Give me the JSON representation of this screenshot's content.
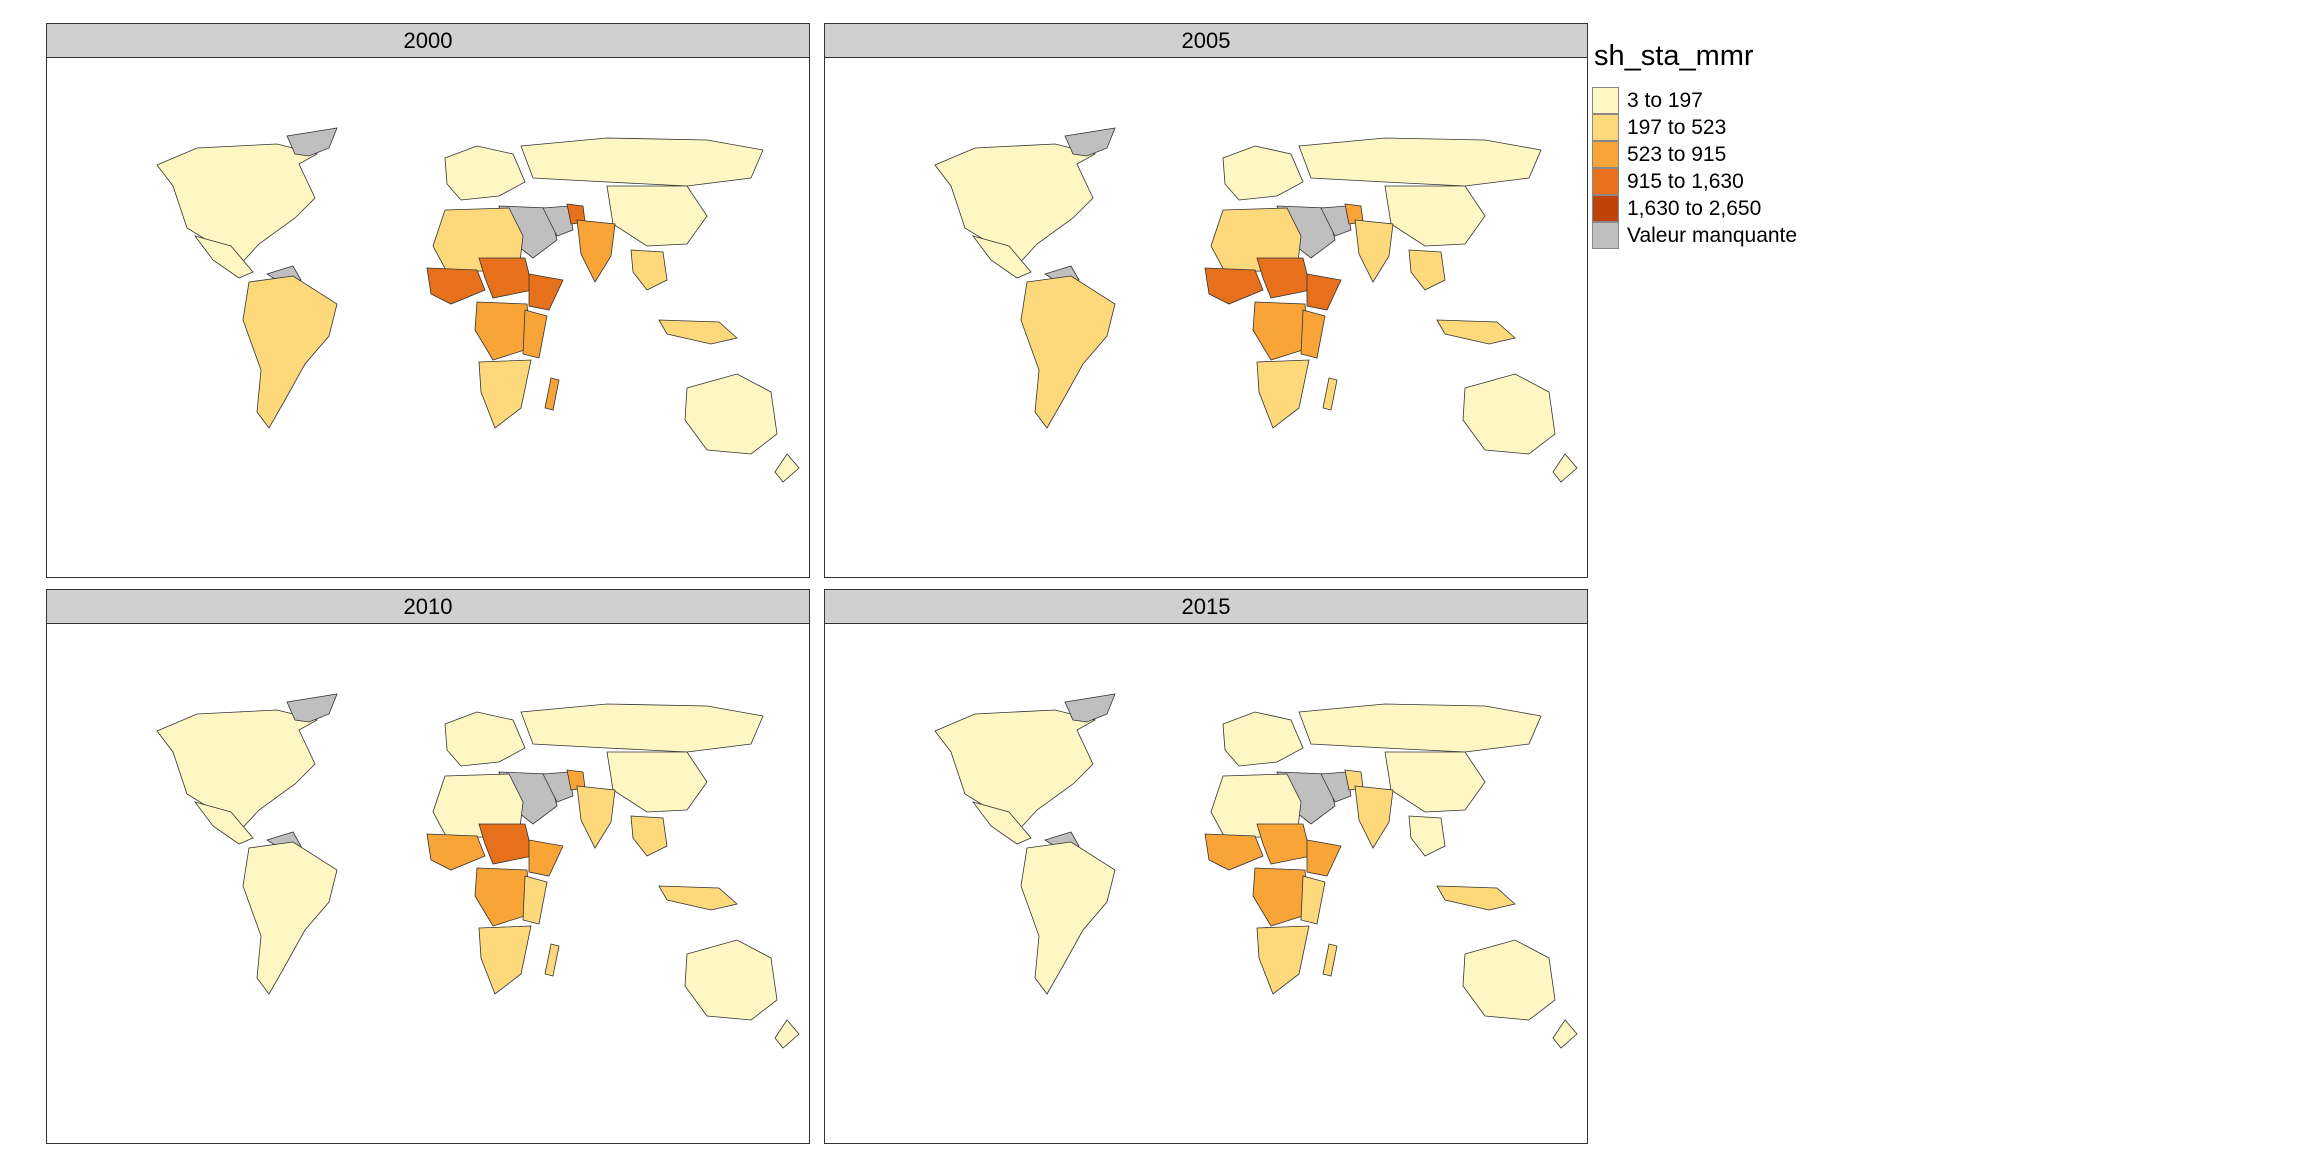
{
  "panels": [
    {
      "label": "2000"
    },
    {
      "label": "2005"
    },
    {
      "label": "2010"
    },
    {
      "label": "2015"
    }
  ],
  "legend": {
    "title": "sh_sta_mmr",
    "items": [
      {
        "label": "3 to 197",
        "color": "#fff7c3"
      },
      {
        "label": "197 to 523",
        "color": "#fdd97c"
      },
      {
        "label": "523 to 915",
        "color": "#f8a436"
      },
      {
        "label": "915 to 1,630",
        "color": "#e6701c"
      },
      {
        "label": "1,630 to 2,650",
        "color": "#bf4308"
      },
      {
        "label": "Valeur manquante",
        "color": "#bfbfbf"
      }
    ]
  },
  "chart_data": {
    "type": "choropleth",
    "variable": "sh_sta_mmr",
    "facets": [
      "2000",
      "2005",
      "2010",
      "2015"
    ],
    "classes": [
      "3 to 197",
      "197 to 523",
      "523 to 915",
      "915 to 1,630",
      "1,630 to 2,650",
      "Valeur manquante"
    ]
  }
}
